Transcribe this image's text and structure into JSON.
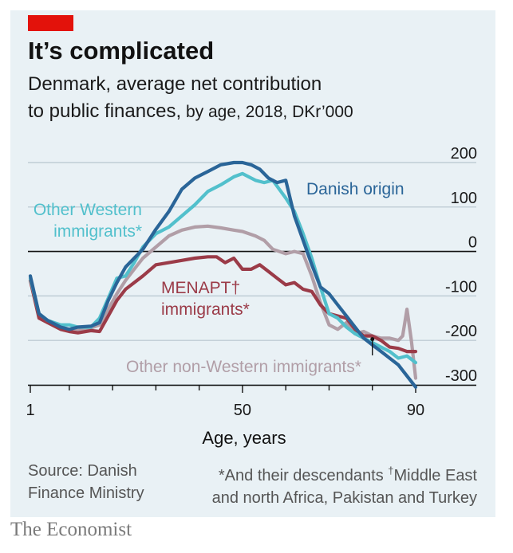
{
  "header": {
    "title": "It’s complicated",
    "subtitle_line1": "Denmark, average net contribution",
    "subtitle_line2_main": "to public finances,",
    "subtitle_line2_detail": " by age, 2018, DKr’000"
  },
  "chart_data": {
    "type": "line",
    "xlabel": "Age, years",
    "ylabel": "",
    "xlim": [
      1,
      90
    ],
    "ylim": [
      -300,
      200
    ],
    "x_tick_labels": [
      "1",
      "50",
      "90"
    ],
    "x_tick_labeled_values": [
      1,
      50,
      90
    ],
    "x_tick_minor_values": [
      1,
      10,
      20,
      30,
      40,
      50,
      60,
      70,
      80,
      90
    ],
    "y_ticks": [
      200,
      100,
      0,
      -100,
      -200,
      -300
    ],
    "y_tick_labels": [
      "200",
      "100",
      "0",
      "-100",
      "-200",
      "-300"
    ],
    "zero_line": true,
    "series": [
      {
        "name": "Other non-Western immigrants*",
        "label_lines": [
          "Other non-Western immigrants*"
        ],
        "color": "#b19ea7",
        "x": [
          1,
          3,
          5,
          8,
          10,
          12,
          15,
          17,
          19,
          21,
          23,
          25,
          27,
          30,
          33,
          36,
          39,
          42,
          45,
          48,
          50,
          53,
          55,
          57,
          60,
          62,
          64,
          66,
          68,
          70,
          72,
          74,
          76,
          78,
          80,
          82,
          84,
          86,
          87,
          88,
          89,
          90
        ],
        "values": [
          -65,
          -140,
          -160,
          -170,
          -175,
          -178,
          -172,
          -165,
          -130,
          -95,
          -65,
          -40,
          -15,
          10,
          35,
          48,
          55,
          57,
          53,
          48,
          45,
          35,
          25,
          5,
          -5,
          0,
          -5,
          -55,
          -115,
          -165,
          -175,
          -160,
          -185,
          -180,
          -190,
          -195,
          -195,
          -200,
          -190,
          -130,
          -200,
          -285
        ]
      },
      {
        "name": "MENAPT† immigrants*",
        "label_lines": [
          "MENAPT†",
          "immigrants*"
        ],
        "color": "#9b3b48",
        "x": [
          1,
          3,
          5,
          8,
          10,
          12,
          15,
          17,
          19,
          21,
          23,
          25,
          27,
          30,
          33,
          36,
          39,
          42,
          44,
          46,
          48,
          50,
          52,
          54,
          56,
          58,
          60,
          62,
          64,
          66,
          68,
          70,
          72,
          74,
          76,
          78,
          80,
          82,
          84,
          86,
          88,
          90
        ],
        "values": [
          -65,
          -150,
          -160,
          -175,
          -180,
          -183,
          -178,
          -180,
          -145,
          -110,
          -85,
          -70,
          -55,
          -30,
          -25,
          -20,
          -15,
          -12,
          -12,
          -25,
          -15,
          -40,
          -40,
          -30,
          -45,
          -60,
          -75,
          -70,
          -85,
          -90,
          -120,
          -140,
          -145,
          -150,
          -175,
          -190,
          -190,
          -200,
          -215,
          -218,
          -225,
          -225
        ]
      },
      {
        "name": "Other Western immigrants*",
        "label_lines": [
          "Other Western",
          "immigrants*"
        ],
        "color": "#52c0cc",
        "x": [
          1,
          3,
          5,
          8,
          10,
          12,
          15,
          17,
          19,
          21,
          23,
          25,
          27,
          30,
          33,
          36,
          39,
          42,
          45,
          48,
          50,
          53,
          55,
          57,
          60,
          62,
          64,
          66,
          68,
          70,
          72,
          74,
          76,
          78,
          80,
          82,
          84,
          86,
          88,
          90
        ],
        "values": [
          -60,
          -140,
          -155,
          -165,
          -165,
          -170,
          -170,
          -150,
          -105,
          -60,
          -55,
          -25,
          10,
          40,
          55,
          80,
          105,
          135,
          150,
          168,
          175,
          160,
          155,
          160,
          120,
          90,
          40,
          -15,
          -80,
          -140,
          -150,
          -170,
          -185,
          -195,
          -205,
          -215,
          -225,
          -240,
          -235,
          -250
        ]
      },
      {
        "name": "Danish origin",
        "label_lines": [
          "Danish origin"
        ],
        "color": "#2a6598",
        "x": [
          1,
          3,
          5,
          8,
          10,
          12,
          15,
          17,
          19,
          21,
          23,
          25,
          27,
          30,
          33,
          36,
          39,
          42,
          45,
          48,
          50,
          52,
          54,
          56,
          58,
          60,
          62,
          64,
          66,
          68,
          70,
          72,
          74,
          76,
          78,
          80,
          82,
          84,
          86,
          88,
          90
        ],
        "values": [
          -55,
          -140,
          -155,
          -170,
          -175,
          -170,
          -168,
          -160,
          -110,
          -70,
          -35,
          -15,
          5,
          50,
          90,
          140,
          165,
          180,
          195,
          200,
          200,
          195,
          185,
          165,
          155,
          160,
          80,
          25,
          -30,
          -80,
          -95,
          -120,
          -145,
          -170,
          -195,
          -210,
          -225,
          -240,
          -255,
          -280,
          -305
        ]
      }
    ],
    "annotations": [
      {
        "text": "Other non-Western immigrants*",
        "pointer_age": 80,
        "pointer_value": -190
      }
    ]
  },
  "footer": {
    "source_line1": "Source: Danish",
    "source_line2": "Finance Ministry",
    "note_line1_a": "*And their descendants ",
    "note_dagger": "†",
    "note_line1_b": "Middle East",
    "note_line2": "and north Africa, Pakistan and Turkey"
  },
  "brand": "The Economist"
}
